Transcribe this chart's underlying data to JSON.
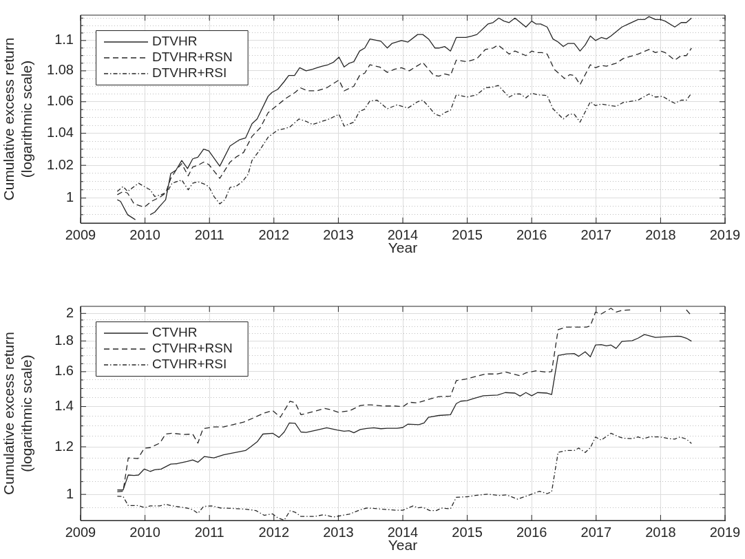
{
  "chart_data": [
    {
      "type": "line",
      "xlabel": "Year",
      "ylabel": "Cumulative excess return\n(logarithmic scale)",
      "log": true,
      "grid": true,
      "legend": "top left",
      "xlim": [
        2009,
        2019
      ],
      "xticks": [
        2009,
        2010,
        2011,
        2012,
        2013,
        2014,
        2015,
        2016,
        2017,
        2018,
        2019
      ],
      "ylim": [
        0.985,
        1.117
      ],
      "yticks": [
        {
          "value": 0.99,
          "label": null
        },
        {
          "value": 0.995,
          "label": null
        },
        1,
        {
          "value": 1.005,
          "label": null
        },
        {
          "value": 1.01,
          "label": null
        },
        {
          "value": 1.015,
          "label": null
        },
        1.02,
        {
          "value": 1.025,
          "label": null
        },
        {
          "value": 1.03,
          "label": null
        },
        {
          "value": 1.035,
          "label": null
        },
        1.04,
        {
          "value": 1.045,
          "label": null
        },
        {
          "value": 1.05,
          "label": null
        },
        {
          "value": 1.055,
          "label": null
        },
        1.06,
        {
          "value": 1.065,
          "label": null
        },
        {
          "value": 1.07,
          "label": null
        },
        {
          "value": 1.075,
          "label": null
        },
        1.08,
        {
          "value": 1.085,
          "label": null
        },
        {
          "value": 1.09,
          "label": null
        },
        {
          "value": 1.095,
          "label": null
        },
        1.1,
        {
          "value": 1.105,
          "label": null
        },
        {
          "value": 1.11,
          "label": null
        },
        {
          "value": 1.115,
          "label": null
        }
      ],
      "series": [
        {
          "name": "DTVHR",
          "color": "#262626",
          "line_style": "solid",
          "x": [
            2009.57,
            2009.62,
            2009.73,
            2009.85,
            2009.92,
            2009.99,
            2010.08,
            2010.15,
            2010.25,
            2010.32,
            2010.4,
            2010.48,
            2010.57,
            2010.66,
            2010.74,
            2010.82,
            2010.91,
            2010.99,
            2011.16,
            2011.32,
            2011.47,
            2011.56,
            2011.66,
            2011.74,
            2011.91,
            2011.97,
            2012.06,
            2012.16,
            2012.23,
            2012.32,
            2012.4,
            2012.5,
            2012.6,
            2012.67,
            2012.75,
            2012.84,
            2012.92,
            2013.01,
            2013.09,
            2013.17,
            2013.24,
            2013.33,
            2013.41,
            2013.49,
            2013.66,
            2013.76,
            2013.83,
            2013.98,
            2014.08,
            2014.23,
            2014.31,
            2014.4,
            2014.5,
            2014.56,
            2014.65,
            2014.74,
            2014.83,
            2014.98,
            2015.07,
            2015.15,
            2015.32,
            2015.4,
            2015.49,
            2015.57,
            2015.65,
            2015.74,
            2015.91,
            2016.0,
            2016.07,
            2016.14,
            2016.24,
            2016.33,
            2016.41,
            2016.49,
            2016.56,
            2016.66,
            2016.75,
            2016.83,
            2016.91,
            2016.99,
            2017.08,
            2017.16,
            2017.23,
            2017.4,
            2017.5,
            2017.65,
            2017.75,
            2017.82,
            2017.92,
            2018.0,
            2018.07,
            2018.22,
            2018.32,
            2018.4,
            2018.48
          ],
          "values": [
            0.999,
            0.998,
            0.99,
            0.987,
            null,
            null,
            0.99,
            0.9915,
            0.996,
            0.999,
            1.015,
            1.017,
            1.023,
            1.018,
            1.024,
            1.025,
            1.03,
            1.029,
            1.0195,
            1.032,
            1.036,
            1.037,
            1.046,
            1.049,
            1.0635,
            1.066,
            1.068,
            1.073,
            1.077,
            1.077,
            1.082,
            1.08,
            1.081,
            1.082,
            1.083,
            1.084,
            1.0855,
            1.089,
            1.0825,
            1.085,
            1.086,
            1.093,
            1.095,
            1.101,
            1.0995,
            1.095,
            1.098,
            1.1,
            1.099,
            1.104,
            1.104,
            1.101,
            1.095,
            1.095,
            1.096,
            1.093,
            1.102,
            1.102,
            1.103,
            1.104,
            1.111,
            1.112,
            1.115,
            1.113,
            1.112,
            1.115,
            1.109,
            1.113,
            1.111,
            1.111,
            1.109,
            1.101,
            1.099,
            1.096,
            1.098,
            1.098,
            1.093,
            1.097,
            1.103,
            1.1,
            1.102,
            1.101,
            1.103,
            1.109,
            1.111,
            1.114,
            1.114,
            1.116,
            1.114,
            1.114,
            1.113,
            1.109,
            1.112,
            1.112,
            1.115
          ]
        },
        {
          "name": "DTVHR+RSN",
          "color": "#262626",
          "line_style": "dashed",
          "x": [
            2009.57,
            2009.66,
            2009.73,
            2009.83,
            2009.99,
            2010.1,
            2010.23,
            2010.32,
            2010.4,
            2010.48,
            2010.57,
            2010.67,
            2010.74,
            2010.82,
            2010.91,
            2010.99,
            2011.16,
            2011.32,
            2011.41,
            2011.53,
            2011.66,
            2011.79,
            2011.91,
            2012.06,
            2012.18,
            2012.33,
            2012.41,
            2012.52,
            2012.67,
            2012.82,
            2013.01,
            2013.09,
            2013.24,
            2013.33,
            2013.41,
            2013.49,
            2013.64,
            2013.76,
            2013.87,
            2013.98,
            2014.1,
            2014.31,
            2014.48,
            2014.56,
            2014.65,
            2014.74,
            2014.83,
            2015.0,
            2015.15,
            2015.28,
            2015.4,
            2015.48,
            2015.65,
            2015.74,
            2015.91,
            2016.0,
            2016.07,
            2016.16,
            2016.24,
            2016.35,
            2016.51,
            2016.59,
            2016.66,
            2016.75,
            2016.91,
            2016.99,
            2017.08,
            2017.16,
            2017.31,
            2017.42,
            2017.65,
            2017.82,
            2017.92,
            2018.0,
            2018.07,
            2018.22,
            2018.32,
            2018.4,
            2018.48
          ],
          "values": [
            1.002,
            1.004,
            1.003,
            0.9965,
            0.9945,
            0.998,
            1.0005,
            1.003,
            1.012,
            1.017,
            1.021,
            1.0135,
            1.019,
            1.02,
            1.022,
            1.0205,
            1.012,
            1.022,
            1.025,
            1.028,
            1.038,
            1.0435,
            1.053,
            1.058,
            1.062,
            1.066,
            1.069,
            1.067,
            1.067,
            1.069,
            1.074,
            1.067,
            1.07,
            1.077,
            1.0785,
            1.084,
            1.0825,
            1.079,
            1.081,
            1.082,
            1.08,
            1.0855,
            1.077,
            1.0765,
            1.078,
            1.077,
            1.087,
            1.086,
            1.088,
            1.094,
            1.095,
            1.097,
            1.091,
            1.093,
            1.09,
            1.093,
            1.092,
            1.092,
            1.091,
            1.081,
            1.075,
            1.0775,
            1.077,
            1.071,
            1.084,
            1.082,
            1.0835,
            1.083,
            1.085,
            1.088,
            1.091,
            1.094,
            1.092,
            1.093,
            1.092,
            1.087,
            1.09,
            1.09,
            1.095
          ]
        },
        {
          "name": "DTVHR+RSI",
          "color": "#262626",
          "line_style": "dashdot",
          "x": [
            2009.57,
            2009.66,
            2009.73,
            2009.9,
            2009.99,
            2010.08,
            2010.15,
            2010.25,
            2010.34,
            2010.42,
            2010.57,
            2010.67,
            2010.74,
            2010.82,
            2010.92,
            2010.99,
            2011.07,
            2011.16,
            2011.24,
            2011.32,
            2011.41,
            2011.51,
            2011.6,
            2011.66,
            2011.79,
            2011.91,
            2012.06,
            2012.18,
            2012.25,
            2012.39,
            2012.5,
            2012.6,
            2012.71,
            2012.86,
            2013.01,
            2013.09,
            2013.24,
            2013.33,
            2013.4,
            2013.49,
            2013.6,
            2013.76,
            2013.91,
            2014.08,
            2014.23,
            2014.31,
            2014.4,
            2014.5,
            2014.58,
            2014.65,
            2014.74,
            2014.83,
            2015.0,
            2015.15,
            2015.28,
            2015.4,
            2015.48,
            2015.65,
            2015.74,
            2015.82,
            2015.91,
            2016.0,
            2016.09,
            2016.24,
            2016.33,
            2016.49,
            2016.58,
            2016.66,
            2016.75,
            2016.91,
            2016.99,
            2017.08,
            2017.23,
            2017.31,
            2017.42,
            2017.65,
            2017.82,
            2017.92,
            2018.03,
            2018.15,
            2018.22,
            2018.32,
            2018.4,
            2018.48
          ],
          "values": [
            1.004,
            1.007,
            1.004,
            1.009,
            1.007,
            1.005,
            1.001,
            1.002,
            1.0035,
            1.009,
            1.011,
            1.005,
            1.009,
            1.01,
            1.0085,
            1.007,
            1.001,
            0.9965,
            0.999,
            1.0065,
            1.007,
            1.01,
            1.0145,
            1.023,
            1.03,
            1.0375,
            1.042,
            1.043,
            1.044,
            1.049,
            1.0475,
            1.0455,
            1.047,
            1.049,
            1.052,
            1.0445,
            1.047,
            1.054,
            1.055,
            1.0605,
            1.061,
            1.0555,
            1.058,
            1.056,
            1.06,
            1.061,
            1.057,
            1.052,
            1.051,
            1.053,
            1.0545,
            1.0645,
            1.063,
            1.0645,
            1.069,
            1.0695,
            1.0705,
            1.063,
            1.065,
            1.065,
            1.0625,
            1.0655,
            1.0645,
            1.064,
            1.0555,
            1.049,
            1.052,
            1.052,
            1.047,
            1.06,
            1.0575,
            1.0585,
            1.0575,
            1.057,
            1.0595,
            1.061,
            1.065,
            1.063,
            1.0635,
            1.0605,
            1.059,
            1.061,
            1.061,
            1.0655
          ]
        }
      ]
    },
    {
      "type": "line",
      "xlabel": "Year",
      "ylabel": "Cumulative excess return\n(logarithmic scale)",
      "log": true,
      "grid": true,
      "legend": "top left",
      "xlim": [
        2009,
        2019
      ],
      "xticks": [
        2009,
        2010,
        2011,
        2012,
        2013,
        2014,
        2015,
        2016,
        2017,
        2018,
        2019
      ],
      "ylim": [
        0.905,
        2.055
      ],
      "yticks": [
        {
          "value": 0.95,
          "label": null
        },
        1,
        {
          "value": 1.05,
          "label": null
        },
        {
          "value": 1.1,
          "label": null
        },
        {
          "value": 1.15,
          "label": null
        },
        1.2,
        {
          "value": 1.25,
          "label": null
        },
        {
          "value": 1.3,
          "label": null
        },
        {
          "value": 1.35,
          "label": null
        },
        1.4,
        {
          "value": 1.45,
          "label": null
        },
        {
          "value": 1.5,
          "label": null
        },
        {
          "value": 1.55,
          "label": null
        },
        1.6,
        {
          "value": 1.65,
          "label": null
        },
        {
          "value": 1.7,
          "label": null
        },
        {
          "value": 1.75,
          "label": null
        },
        1.8,
        {
          "value": 1.85,
          "label": null
        },
        {
          "value": 1.9,
          "label": null
        },
        {
          "value": 1.95,
          "label": null
        },
        2
      ],
      "series": [
        {
          "name": "CTVHR",
          "color": "#262626",
          "line_style": "solid",
          "x": [
            2009.57,
            2009.66,
            2009.74,
            2009.83,
            2009.9,
            2009.99,
            2010.08,
            2010.15,
            2010.25,
            2010.4,
            2010.5,
            2010.65,
            2010.74,
            2010.82,
            2010.92,
            2011.07,
            2011.22,
            2011.56,
            2011.64,
            2011.74,
            2011.83,
            2011.98,
            2012.08,
            2012.16,
            2012.24,
            2012.33,
            2012.42,
            2012.5,
            2012.67,
            2012.82,
            2012.98,
            2013.09,
            2013.17,
            2013.24,
            2013.34,
            2013.44,
            2013.55,
            2013.66,
            2013.76,
            2013.91,
            2014.0,
            2014.08,
            2014.25,
            2014.33,
            2014.4,
            2014.56,
            2014.74,
            2014.83,
            2014.9,
            2015.0,
            2015.09,
            2015.25,
            2015.47,
            2015.59,
            2015.74,
            2015.82,
            2015.91,
            2016.0,
            2016.09,
            2016.24,
            2016.31,
            2016.41,
            2016.54,
            2016.66,
            2016.73,
            2016.83,
            2016.91,
            2016.99,
            2017.08,
            2017.16,
            2017.23,
            2017.31,
            2017.4,
            2017.56,
            2017.65,
            2017.75,
            2017.82,
            2017.92,
            2018.0,
            2018.26,
            2018.32,
            2018.4,
            2018.48
          ],
          "values": [
            1.017,
            1.017,
            1.077,
            1.075,
            1.077,
            1.102,
            1.092,
            1.099,
            1.102,
            1.123,
            1.125,
            1.134,
            1.141,
            1.131,
            1.156,
            1.15,
            1.164,
            1.183,
            1.2,
            1.223,
            1.26,
            1.264,
            1.244,
            1.27,
            1.315,
            1.313,
            1.27,
            1.268,
            1.28,
            1.291,
            1.28,
            1.274,
            1.276,
            1.266,
            1.282,
            1.287,
            1.291,
            1.286,
            1.288,
            1.288,
            1.292,
            1.309,
            1.306,
            1.315,
            1.344,
            1.353,
            1.357,
            1.416,
            1.429,
            1.432,
            1.443,
            1.459,
            1.463,
            1.477,
            1.474,
            1.457,
            1.477,
            1.459,
            1.477,
            1.474,
            1.466,
            1.702,
            1.713,
            1.715,
            1.697,
            1.727,
            1.694,
            1.772,
            1.775,
            1.766,
            1.772,
            1.749,
            1.797,
            1.802,
            1.819,
            1.845,
            1.836,
            1.824,
            1.827,
            1.833,
            1.831,
            1.819,
            1.798
          ]
        },
        {
          "name": "CTVHR+RSN",
          "color": "#262626",
          "line_style": "dashed",
          "x": [
            2009.57,
            2009.66,
            2009.74,
            2009.89,
            2009.99,
            2010.08,
            2010.23,
            2010.32,
            2010.42,
            2010.61,
            2010.74,
            2010.82,
            2010.9,
            2011.07,
            2011.22,
            2011.53,
            2011.68,
            2011.83,
            2011.98,
            2012.1,
            2012.25,
            2012.33,
            2012.42,
            2012.6,
            2012.79,
            2012.88,
            2013.0,
            2013.17,
            2013.34,
            2013.41,
            2013.51,
            2013.68,
            2013.87,
            2014.0,
            2014.1,
            2014.23,
            2014.4,
            2014.56,
            2014.74,
            2014.83,
            2014.98,
            2015.13,
            2015.28,
            2015.47,
            2015.59,
            2015.82,
            2015.91,
            2016.07,
            2016.24,
            2016.31,
            2016.41,
            2016.54,
            2016.85,
            2016.91,
            2016.99,
            2017.08,
            2017.23,
            2017.31,
            2017.4,
            2017.56,
            2017.73,
            2018.0,
            2018.3,
            2018.4,
            2018.48
          ],
          "values": [
            1.01,
            1.012,
            1.15,
            1.147,
            1.194,
            1.196,
            1.217,
            1.26,
            1.264,
            1.258,
            1.26,
            1.217,
            1.286,
            1.295,
            1.295,
            1.319,
            1.34,
            1.363,
            1.379,
            1.344,
            1.429,
            1.42,
            1.357,
            1.372,
            1.39,
            1.383,
            1.37,
            1.377,
            1.405,
            1.409,
            1.409,
            1.403,
            1.403,
            1.399,
            1.423,
            1.42,
            1.439,
            1.454,
            1.457,
            1.546,
            1.555,
            1.571,
            1.586,
            1.586,
            1.598,
            1.575,
            1.593,
            1.605,
            1.597,
            1.601,
            1.88,
            1.898,
            1.898,
            1.907,
            2.01,
            1.996,
            2.04,
            2.01,
            2.024,
            2.028,
            null,
            null,
            null,
            2.028,
            1.982
          ]
        },
        {
          "name": "CTVHR+RSI",
          "color": "#262626",
          "line_style": "dashdot",
          "x": [
            2009.57,
            2009.66,
            2009.74,
            2009.9,
            2010.0,
            2010.08,
            2010.23,
            2010.32,
            2010.42,
            2010.65,
            2010.74,
            2010.82,
            2010.91,
            2011.03,
            2011.18,
            2011.34,
            2011.56,
            2011.72,
            2011.85,
            2011.98,
            2012.06,
            2012.16,
            2012.25,
            2012.33,
            2012.42,
            2012.63,
            2012.77,
            2012.92,
            2013.17,
            2013.34,
            2013.44,
            2013.53,
            2013.68,
            2013.91,
            2014.0,
            2014.16,
            2014.23,
            2014.31,
            2014.42,
            2014.52,
            2014.6,
            2014.74,
            2014.83,
            2015.0,
            2015.13,
            2015.32,
            2015.49,
            2015.61,
            2015.78,
            2015.91,
            2016.0,
            2016.12,
            2016.24,
            2016.31,
            2016.41,
            2016.54,
            2016.66,
            2016.73,
            2016.83,
            2016.91,
            2016.99,
            2017.08,
            2017.23,
            2017.35,
            2017.42,
            2017.56,
            2017.65,
            2017.73,
            2017.84,
            2018.0,
            2018.13,
            2018.22,
            2018.3,
            2018.4,
            2018.48
          ],
          "values": [
            0.993,
            0.992,
            0.958,
            0.958,
            0.95,
            0.957,
            0.957,
            0.963,
            0.957,
            0.949,
            0.943,
            0.93,
            0.955,
            0.957,
            0.949,
            0.948,
            0.945,
            0.94,
            0.923,
            0.928,
            0.914,
            0.906,
            0.939,
            0.934,
            0.919,
            0.919,
            0.925,
            0.917,
            0.927,
            0.943,
            0.949,
            0.948,
            0.945,
            0.941,
            0.941,
            0.957,
            0.95,
            0.952,
            0.94,
            0.94,
            0.949,
            0.946,
            0.989,
            0.991,
            0.996,
            1.001,
            0.996,
            0.998,
            0.982,
            0.993,
            1.001,
            1.012,
            1.003,
            1.01,
            1.175,
            1.183,
            1.183,
            1.194,
            1.174,
            1.196,
            1.246,
            1.231,
            1.264,
            1.247,
            1.24,
            1.238,
            1.246,
            1.238,
            1.247,
            1.246,
            1.238,
            1.236,
            1.246,
            1.236,
            1.215
          ]
        }
      ]
    }
  ]
}
